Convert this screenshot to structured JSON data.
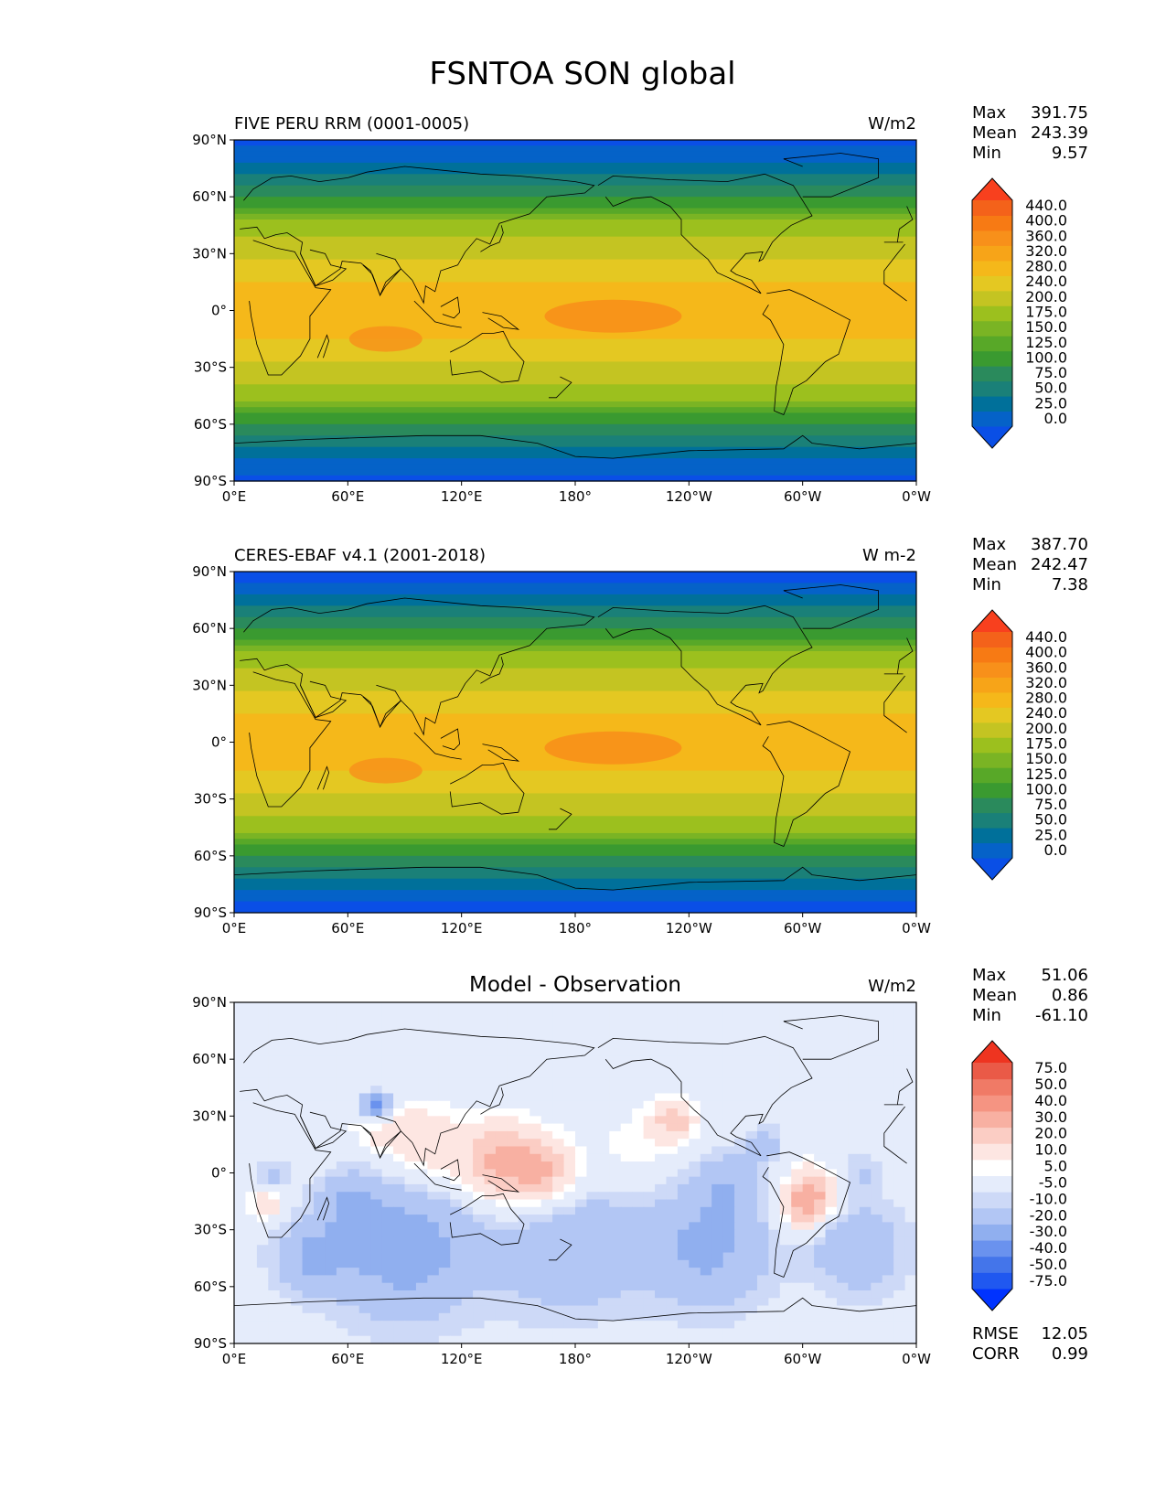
{
  "figure": {
    "title": "FSNTOA SON global"
  },
  "colors": {
    "abs_levels": [
      "#0a4fe6",
      "#0562c8",
      "#00709a",
      "#1a8078",
      "#2a8a5c",
      "#3a9a30",
      "#58a828",
      "#7ab424",
      "#9cc01e",
      "#c4c422",
      "#e4c822",
      "#f5b81a",
      "#f7a418",
      "#f8901a",
      "#f77a14",
      "#f4621a",
      "#f8401e"
    ],
    "diff_levels": [
      "#0033ff",
      "#2058f0",
      "#4475ea",
      "#6a92ee",
      "#90afef",
      "#b2c6f4",
      "#cdd9f7",
      "#e5ecfb",
      "#ffffff",
      "#fde6e2",
      "#fbcdc4",
      "#f8b0a2",
      "#f59482",
      "#f07a66",
      "#ea5a47",
      "#ee3420"
    ],
    "coastline": "#000000",
    "frame": "#000000"
  },
  "chart_data": [
    {
      "type": "heatmap",
      "id": "model",
      "title": "FIVE PERU RRM (0001-0005)",
      "units": "W/m2",
      "stats": {
        "max_label": "Max",
        "max": "391.75",
        "mean_label": "Mean",
        "mean": "243.39",
        "min_label": "Min",
        "min": "9.57"
      },
      "xticks": [
        "0°E",
        "60°E",
        "120°E",
        "180°",
        "120°W",
        "60°W",
        "0°W"
      ],
      "yticks": [
        "90°N",
        "60°N",
        "30°N",
        "0°",
        "30°S",
        "60°S",
        "90°S"
      ],
      "xlim": [
        0,
        360
      ],
      "ylim": [
        -90,
        90
      ],
      "colorbar": {
        "labels": [
          "440.0",
          "400.0",
          "360.0",
          "320.0",
          "280.0",
          "240.0",
          "200.0",
          "175.0",
          "150.0",
          "125.0",
          "100.0",
          "75.0",
          "50.0",
          "25.0",
          "0.0"
        ],
        "extend": "both"
      }
    },
    {
      "type": "heatmap",
      "id": "obs",
      "title": "CERES-EBAF v4.1 (2001-2018)",
      "units": "W m-2",
      "stats": {
        "max_label": "Max",
        "max": "387.70",
        "mean_label": "Mean",
        "mean": "242.47",
        "min_label": "Min",
        "min": "7.38"
      },
      "xticks": [
        "0°E",
        "60°E",
        "120°E",
        "180°",
        "120°W",
        "60°W",
        "0°W"
      ],
      "yticks": [
        "90°N",
        "60°N",
        "30°N",
        "0°",
        "30°S",
        "60°S",
        "90°S"
      ],
      "xlim": [
        0,
        360
      ],
      "ylim": [
        -90,
        90
      ],
      "colorbar": {
        "labels": [
          "440.0",
          "400.0",
          "360.0",
          "320.0",
          "280.0",
          "240.0",
          "200.0",
          "175.0",
          "150.0",
          "125.0",
          "100.0",
          "75.0",
          "50.0",
          "25.0",
          "0.0"
        ],
        "extend": "both"
      }
    },
    {
      "type": "heatmap",
      "id": "diff",
      "title": "Model - Observation",
      "units": "W/m2",
      "stats": {
        "max_label": "Max",
        "max": "51.06",
        "mean_label": "Mean",
        "mean": "0.86",
        "min_label": "Min",
        "min": "-61.10"
      },
      "extra_stats": {
        "rmse_label": "RMSE",
        "rmse": "12.05",
        "corr_label": "CORR",
        "corr": "0.99"
      },
      "xticks": [
        "0°E",
        "60°E",
        "120°E",
        "180°",
        "120°W",
        "60°W",
        "0°W"
      ],
      "yticks": [
        "90°N",
        "60°N",
        "30°N",
        "0°",
        "30°S",
        "60°S",
        "90°S"
      ],
      "xlim": [
        0,
        360
      ],
      "ylim": [
        -90,
        90
      ],
      "colorbar": {
        "labels": [
          "75.0",
          "50.0",
          "40.0",
          "30.0",
          "20.0",
          "10.0",
          "5.0",
          "-5.0",
          "-10.0",
          "-20.0",
          "-30.0",
          "-40.0",
          "-50.0",
          "-75.0"
        ],
        "extend": "both"
      }
    }
  ]
}
